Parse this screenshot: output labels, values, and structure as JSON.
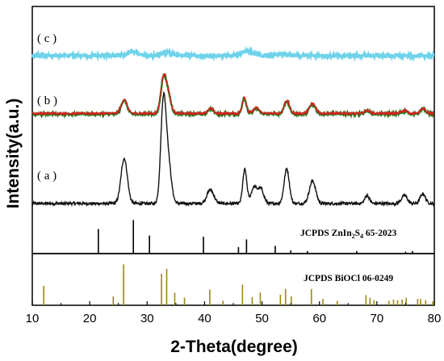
{
  "chart_data": {
    "type": "line",
    "xlabel": "2-Theta(degree)",
    "ylabel": "Intensity(a.u.)",
    "xlim": [
      10,
      80
    ],
    "x_ticks": [
      10,
      20,
      30,
      40,
      50,
      60,
      70,
      80
    ],
    "grid": false,
    "colors": {
      "a": "#111111",
      "b_main": "#d92020",
      "b_base": "#1a7a1a",
      "c": "#6fd3ea",
      "ref_znins": "#000000",
      "ref_biocl": "#9b8a12"
    },
    "series": [
      {
        "label": "( a )",
        "baseline": 0.0,
        "noise": 0.018,
        "peaks": [
          [
            26.0,
            0.56,
            0.55
          ],
          [
            32.8,
            1.15,
            0.45
          ],
          [
            33.6,
            0.55,
            0.55
          ],
          [
            41.0,
            0.17,
            0.6
          ],
          [
            47.0,
            0.42,
            0.35
          ],
          [
            48.6,
            0.2,
            0.5
          ],
          [
            49.8,
            0.18,
            0.5
          ],
          [
            54.3,
            0.43,
            0.45
          ],
          [
            58.8,
            0.28,
            0.55
          ],
          [
            68.3,
            0.1,
            0.4
          ],
          [
            74.8,
            0.1,
            0.5
          ],
          [
            78.0,
            0.12,
            0.45
          ]
        ]
      },
      {
        "label": "( b )",
        "baseline": 0.0,
        "noise": 0.014,
        "peaks": [
          [
            26.0,
            0.17,
            0.5
          ],
          [
            32.8,
            0.4,
            0.45
          ],
          [
            33.6,
            0.25,
            0.5
          ],
          [
            41.0,
            0.06,
            0.5
          ],
          [
            46.9,
            0.2,
            0.35
          ],
          [
            49.0,
            0.07,
            0.5
          ],
          [
            54.3,
            0.16,
            0.45
          ],
          [
            58.8,
            0.12,
            0.55
          ],
          [
            68.3,
            0.04,
            0.4
          ],
          [
            74.8,
            0.04,
            0.5
          ],
          [
            78.0,
            0.06,
            0.45
          ]
        ]
      },
      {
        "label": "( c )",
        "baseline": 0.0,
        "noise": 0.02,
        "peaks": [
          [
            27.5,
            0.05,
            0.8
          ],
          [
            33.5,
            0.04,
            0.9
          ],
          [
            47.3,
            0.06,
            0.9
          ],
          [
            53.5,
            0.03,
            1.0
          ]
        ]
      }
    ],
    "references": [
      {
        "label": "JCPDS ZnIn",
        "sub1": "2",
        "mid": "S",
        "sub2": "4",
        "tail": " 65-2023",
        "sticks": [
          [
            21.5,
            0.38
          ],
          [
            27.6,
            0.52
          ],
          [
            30.4,
            0.28
          ],
          [
            39.8,
            0.26
          ],
          [
            45.9,
            0.1
          ],
          [
            47.3,
            0.22
          ],
          [
            52.3,
            0.12
          ],
          [
            55.0,
            0.05
          ],
          [
            57.9,
            0.04
          ],
          [
            66.5,
            0.04
          ],
          [
            75.0,
            0.03
          ],
          [
            76.2,
            0.04
          ]
        ]
      },
      {
        "label": "JCPDS BiOCl 06-0249",
        "sticks": [
          [
            12.0,
            0.31
          ],
          [
            24.1,
            0.14
          ],
          [
            25.9,
            0.65
          ],
          [
            32.5,
            0.5
          ],
          [
            33.4,
            0.58
          ],
          [
            34.8,
            0.2
          ],
          [
            36.5,
            0.12
          ],
          [
            40.9,
            0.25
          ],
          [
            43.2,
            0.07
          ],
          [
            46.6,
            0.33
          ],
          [
            48.3,
            0.13
          ],
          [
            49.7,
            0.2
          ],
          [
            53.2,
            0.17
          ],
          [
            54.1,
            0.26
          ],
          [
            55.1,
            0.14
          ],
          [
            58.6,
            0.26
          ],
          [
            60.6,
            0.1
          ],
          [
            63.1,
            0.07
          ],
          [
            68.1,
            0.16
          ],
          [
            68.8,
            0.12
          ],
          [
            69.5,
            0.08
          ],
          [
            72.1,
            0.07
          ],
          [
            72.9,
            0.09
          ],
          [
            73.6,
            0.08
          ],
          [
            74.4,
            0.09
          ],
          [
            75.1,
            0.12
          ],
          [
            77.1,
            0.1
          ],
          [
            77.6,
            0.1
          ],
          [
            78.5,
            0.08
          ],
          [
            79.7,
            0.06
          ]
        ]
      }
    ]
  }
}
